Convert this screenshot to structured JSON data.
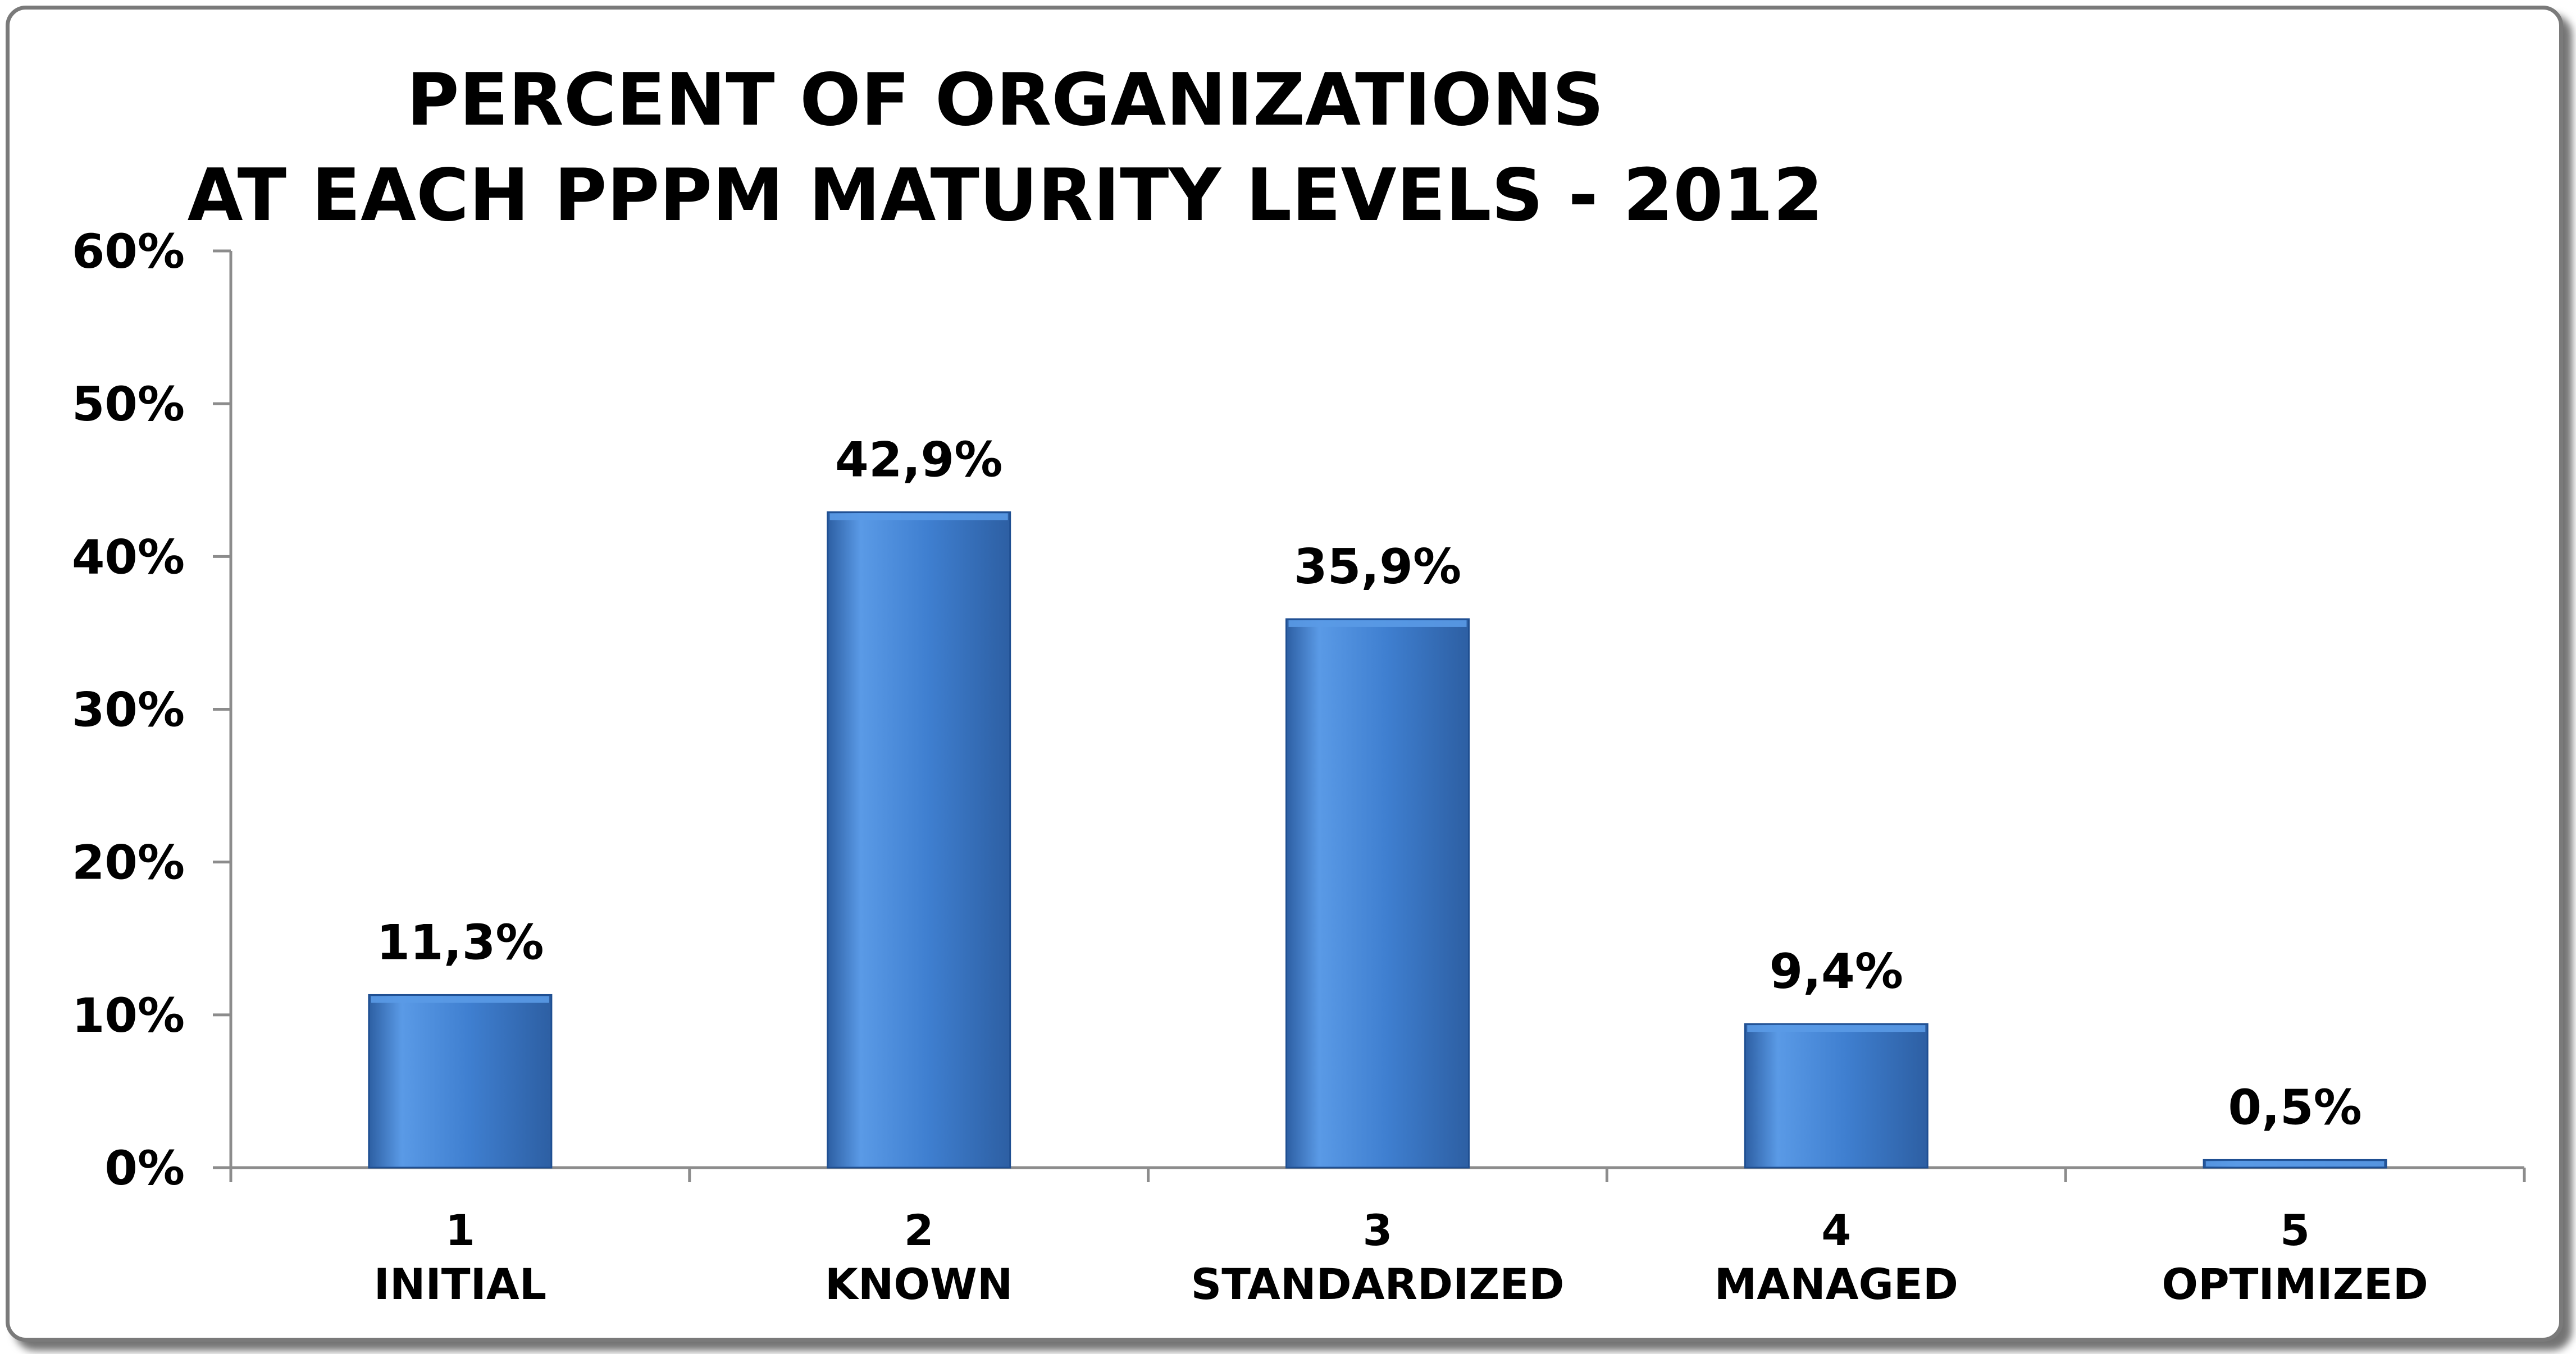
{
  "chart_data": {
    "type": "bar",
    "title": [
      "PERCENT OF ORGANIZATIONS",
      "AT EACH PPPM MATURITY LEVELS - 2012"
    ],
    "categories": [
      {
        "number": "1",
        "name": "INITIAL"
      },
      {
        "number": "2",
        "name": "KNOWN"
      },
      {
        "number": "3",
        "name": "STANDARDIZED"
      },
      {
        "number": "4",
        "name": "MANAGED"
      },
      {
        "number": "5",
        "name": "OPTIMIZED"
      }
    ],
    "values": [
      11.3,
      42.9,
      35.9,
      9.4,
      0.5
    ],
    "value_labels": [
      "11,3%",
      "42,9%",
      "35,9%",
      "9,4%",
      "0,5%"
    ],
    "ylim": [
      0,
      60
    ],
    "yticks": [
      0,
      10,
      20,
      30,
      40,
      50,
      60
    ],
    "ytick_labels": [
      "0%",
      "10%",
      "20%",
      "30%",
      "40%",
      "50%",
      "60%"
    ],
    "xlabel": "",
    "ylabel": "",
    "grid": false,
    "legend": "none",
    "colors": {
      "bar_light": "#5a9ae6",
      "bar_mid": "#3f7fd0",
      "bar_dark": "#2d5fa3",
      "bar_edge": "#1f4f92",
      "axis": "#8c8c8c",
      "frame": "#7a7a7a"
    }
  }
}
